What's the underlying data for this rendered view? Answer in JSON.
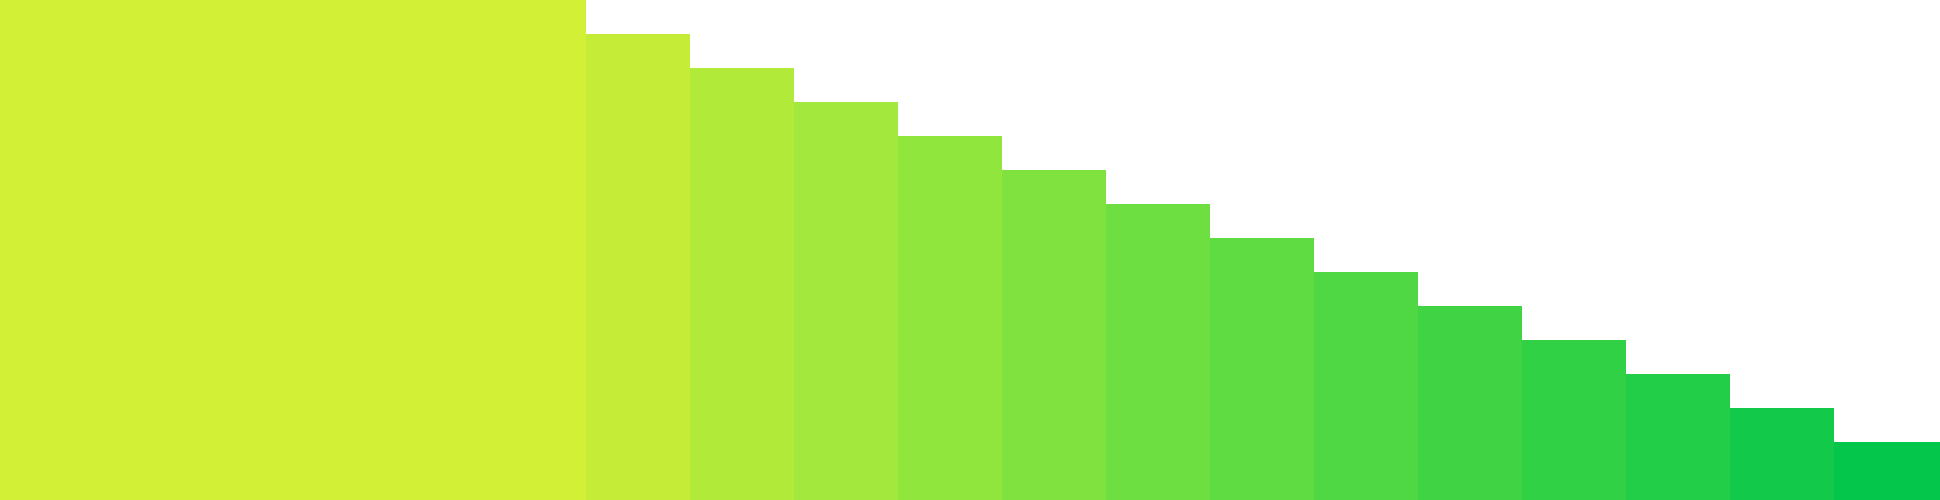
{
  "graphic": {
    "steps": [
      {
        "level": 1.0,
        "color": "#d2f036"
      },
      {
        "level": 0.932,
        "color": "#c5ed37"
      },
      {
        "level": 0.864,
        "color": "#b2ea3a"
      },
      {
        "level": 0.796,
        "color": "#a3e83d"
      },
      {
        "level": 0.728,
        "color": "#91e63e"
      },
      {
        "level": 0.66,
        "color": "#7fe23f"
      },
      {
        "level": 0.592,
        "color": "#6ddf40"
      },
      {
        "level": 0.524,
        "color": "#5fdc42"
      },
      {
        "level": 0.456,
        "color": "#4fd843"
      },
      {
        "level": 0.388,
        "color": "#40d444"
      },
      {
        "level": 0.32,
        "color": "#31d146"
      },
      {
        "level": 0.252,
        "color": "#22cd47"
      },
      {
        "level": 0.184,
        "color": "#12c949"
      },
      {
        "level": 0.116,
        "color": "#03c64b"
      }
    ]
  }
}
